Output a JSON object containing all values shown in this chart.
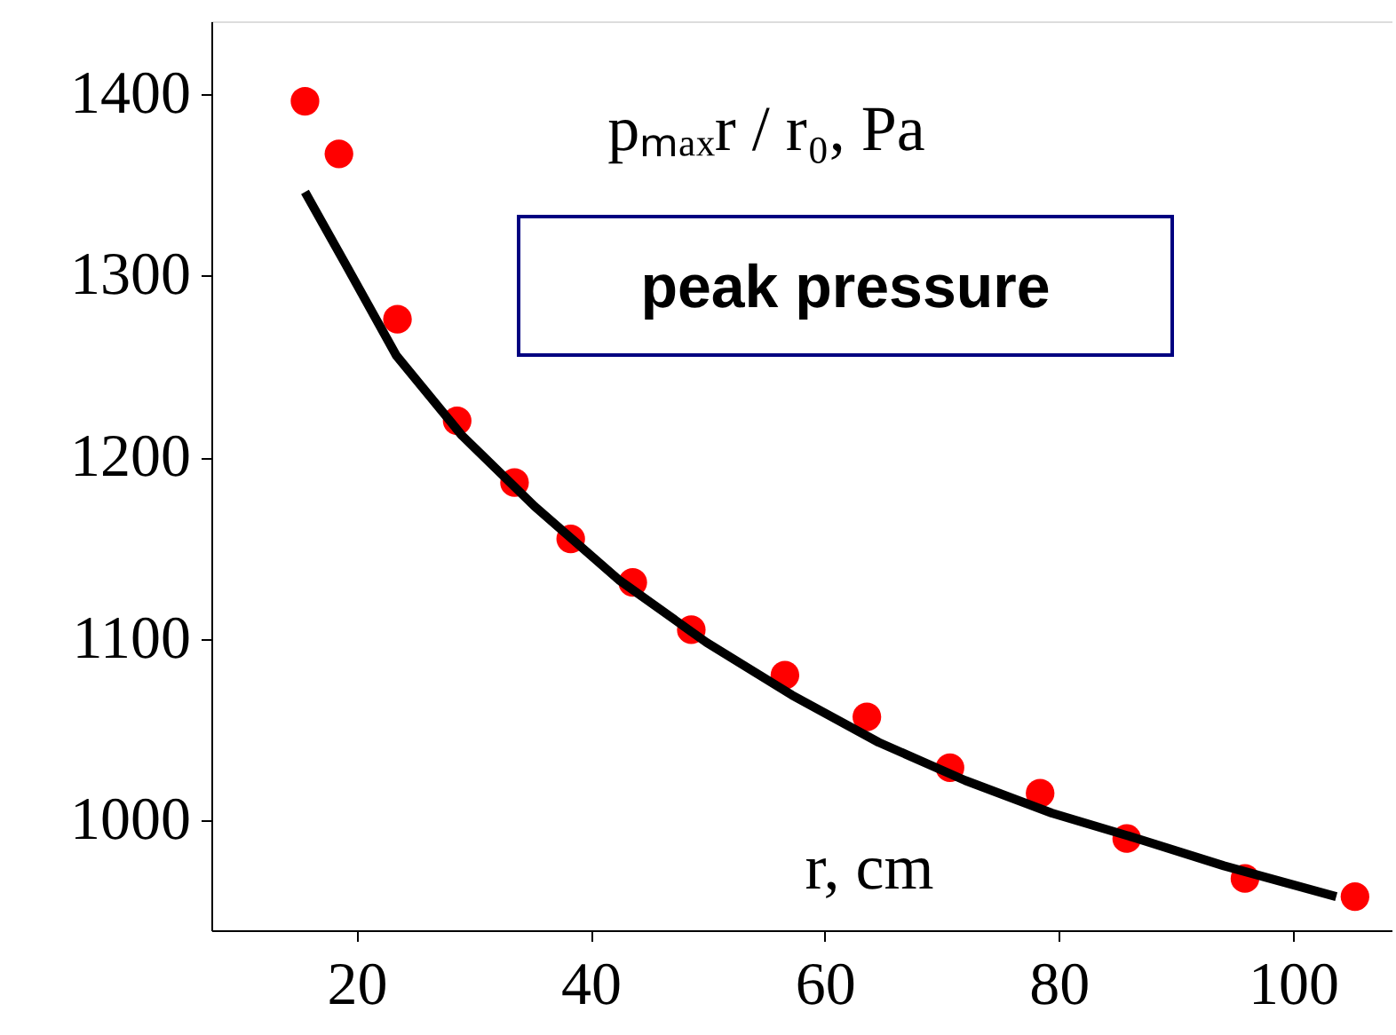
{
  "chart_data": {
    "type": "scatter",
    "title": "peak pressure",
    "xlabel": "r, cm",
    "ylabel": "pₘₐₓr / r₀, Pa",
    "x": [
      15.6,
      18.5,
      23.5,
      28.6,
      33.5,
      38.3,
      43.6,
      48.6,
      56.6,
      63.6,
      70.7,
      78.4,
      85.8,
      95.9,
      105.3
    ],
    "series": [
      {
        "color": "#ff0000",
        "marker": "circle",
        "values": [
          1396,
          1367,
          1276,
          1220,
          1186,
          1155,
          1131,
          1105,
          1080,
          1057,
          1029,
          1015,
          990,
          968,
          958
        ]
      },
      {
        "type": "line",
        "color": "#000000",
        "marker": "none",
        "line_style": "solid",
        "x": [
          15.6,
          19,
          23.4,
          29,
          35.2,
          42.5,
          49.9,
          57.2,
          64.6,
          72,
          79.4,
          86.7,
          94.1,
          103.7
        ],
        "values": [
          1346,
          1307,
          1256,
          1212,
          1173,
          1132,
          1098,
          1069,
          1043,
          1022,
          1004,
          990,
          975,
          958
        ]
      }
    ],
    "xlim": [
      7.6,
      108.5
    ],
    "ylim": [
      939.5,
      1440
    ],
    "xticks": [
      20,
      40,
      60,
      80,
      100
    ],
    "yticks": [
      1000,
      1100,
      1200,
      1300,
      1400
    ],
    "grid": false
  }
}
